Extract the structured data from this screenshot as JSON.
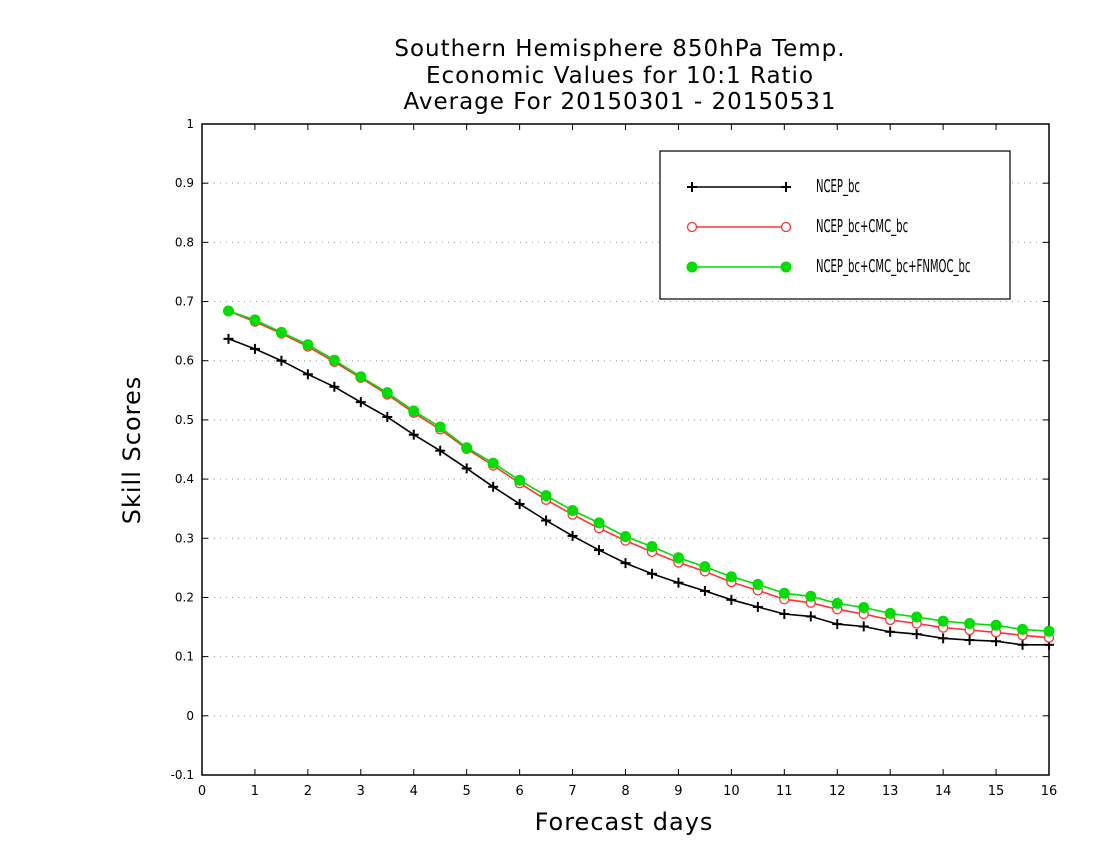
{
  "chart_data": {
    "type": "line",
    "title": [
      "Southern Hemisphere 850hPa Temp.",
      "Economic Values for 10:1 Ratio",
      "Average For 20150301 - 20150531"
    ],
    "xlabel": "Forecast days",
    "ylabel": "Skill Scores",
    "xlim": [
      0,
      16
    ],
    "ylim": [
      -0.1,
      1
    ],
    "xticks": [
      "0",
      "1",
      "2",
      "3",
      "4",
      "5",
      "6",
      "7",
      "8",
      "9",
      "10",
      "11",
      "12",
      "13",
      "14",
      "15",
      "16"
    ],
    "yticks": [
      "-0.1",
      "0",
      "0.1",
      "0.2",
      "0.3",
      "0.4",
      "0.5",
      "0.6",
      "0.7",
      "0.8",
      "0.9",
      "1"
    ],
    "grid": "horizontal-dotted",
    "legend_position": "top-right",
    "x": [
      0.5,
      1,
      1.5,
      2,
      2.5,
      3,
      3.5,
      4,
      4.5,
      5,
      5.5,
      6,
      6.5,
      7,
      7.5,
      8,
      8.5,
      9,
      9.5,
      10,
      10.5,
      11,
      11.5,
      12,
      12.5,
      13,
      13.5,
      14,
      14.5,
      15,
      15.5,
      16
    ],
    "series": [
      {
        "name": "NCEP_bc",
        "color": "#000000",
        "marker": "plus",
        "values": [
          0.637,
          0.62,
          0.6,
          0.577,
          0.556,
          0.53,
          0.505,
          0.475,
          0.448,
          0.418,
          0.387,
          0.358,
          0.33,
          0.304,
          0.28,
          0.258,
          0.24,
          0.225,
          0.211,
          0.196,
          0.184,
          0.172,
          0.168,
          0.155,
          0.151,
          0.142,
          0.138,
          0.131,
          0.128,
          0.126,
          0.12,
          0.12
        ]
      },
      {
        "name": "NCEP_bc+CMC_bc",
        "color": "#ff3333",
        "marker": "open-circle",
        "values": [
          0.684,
          0.666,
          0.646,
          0.624,
          0.598,
          0.571,
          0.543,
          0.512,
          0.484,
          0.451,
          0.423,
          0.393,
          0.365,
          0.34,
          0.317,
          0.296,
          0.277,
          0.259,
          0.244,
          0.226,
          0.212,
          0.197,
          0.191,
          0.18,
          0.172,
          0.162,
          0.156,
          0.149,
          0.145,
          0.141,
          0.136,
          0.132
        ]
      },
      {
        "name": "NCEP_bc+CMC_bc+FNMOC_bc",
        "color": "#00dd00",
        "marker": "filled-circle",
        "values": [
          0.684,
          0.669,
          0.648,
          0.627,
          0.601,
          0.573,
          0.546,
          0.515,
          0.488,
          0.453,
          0.427,
          0.398,
          0.372,
          0.347,
          0.326,
          0.303,
          0.286,
          0.267,
          0.252,
          0.235,
          0.222,
          0.207,
          0.202,
          0.19,
          0.183,
          0.173,
          0.167,
          0.16,
          0.156,
          0.153,
          0.146,
          0.143
        ]
      }
    ]
  }
}
